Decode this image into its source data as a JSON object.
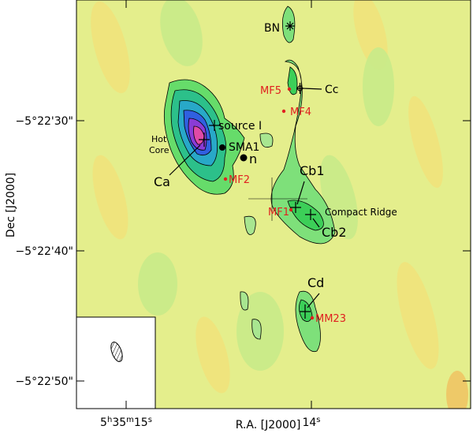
{
  "figure": {
    "axes": {
      "x_label": "R.A. [J2000]",
      "y_label": "Dec [J2000]"
    },
    "x_ticks": [
      [
        "5",
        "h",
        "35",
        "m",
        "15",
        "s"
      ],
      [
        "14",
        "s"
      ]
    ],
    "y_ticks": [
      "−5°22'30\"",
      "−5°22'40\"",
      "−5°22'50\""
    ],
    "labels": {
      "bn": "BN",
      "mf5": "MF5",
      "mf4": "MF4",
      "cc": "Cc",
      "source_i": "source I",
      "hot": "Hot",
      "core": "Core",
      "sma1": "SMA1",
      "n": "n",
      "ca": "Ca",
      "mf2": "MF2",
      "cb1": "Cb1",
      "mf1": "MF1",
      "compact_ridge": "Compact Ridge",
      "cb2": "Cb2",
      "cd": "Cd",
      "mm23": "MM23"
    }
  }
}
